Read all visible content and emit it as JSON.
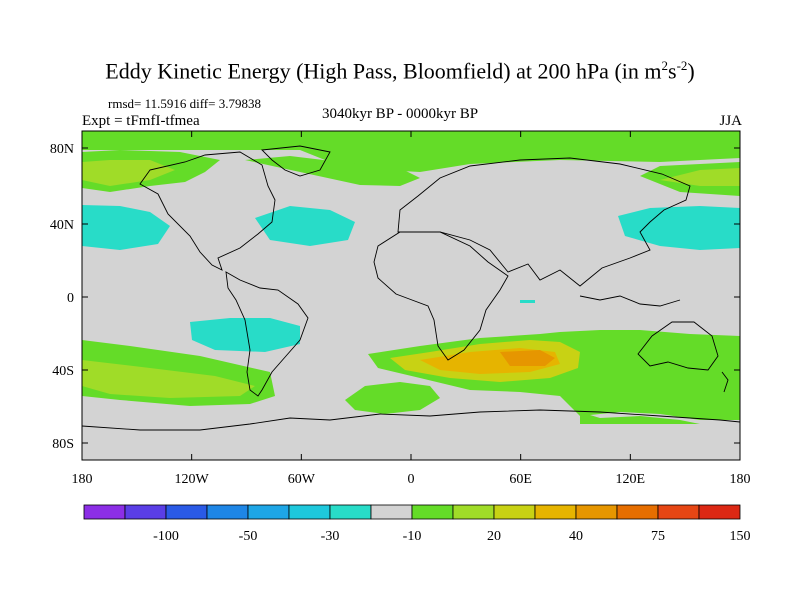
{
  "title": {
    "text": "Eddy Kinetic Energy (High Pass, Bloomfield) at 200 hPa (in m",
    "sup1": "2",
    "mid": "s",
    "sup2": "-2",
    "close": ")"
  },
  "stats": "rmsd= 11.5916 diff= 3.79838",
  "experiment": "Expt = tFmfI-tfmea",
  "period": "3040kyr BP - 0000kyr BP",
  "season": "JJA",
  "map": {
    "lon_ticks": [
      "180",
      "120W",
      "60W",
      "0",
      "60E",
      "120E",
      "180"
    ],
    "lat_ticks": [
      "80N",
      "40N",
      "0",
      "40S",
      "80S"
    ],
    "lon_range": [
      -180,
      180
    ],
    "lat_range": [
      -90,
      90
    ],
    "background_color": "#d3d3d3"
  },
  "colorbar": {
    "colors": [
      "#8c2ee6",
      "#5a3ee6",
      "#2a5ae6",
      "#1e86e6",
      "#1ea6e6",
      "#1ec8dc",
      "#28dcc8",
      "#d3d3d3",
      "#64dc28",
      "#a0dc28",
      "#c8d214",
      "#e6b400",
      "#e69600",
      "#e66e00",
      "#e64614",
      "#dc2814"
    ],
    "labels": [
      "-100",
      "-50",
      "-30",
      "-10",
      "20",
      "40",
      "75",
      "150"
    ]
  }
}
